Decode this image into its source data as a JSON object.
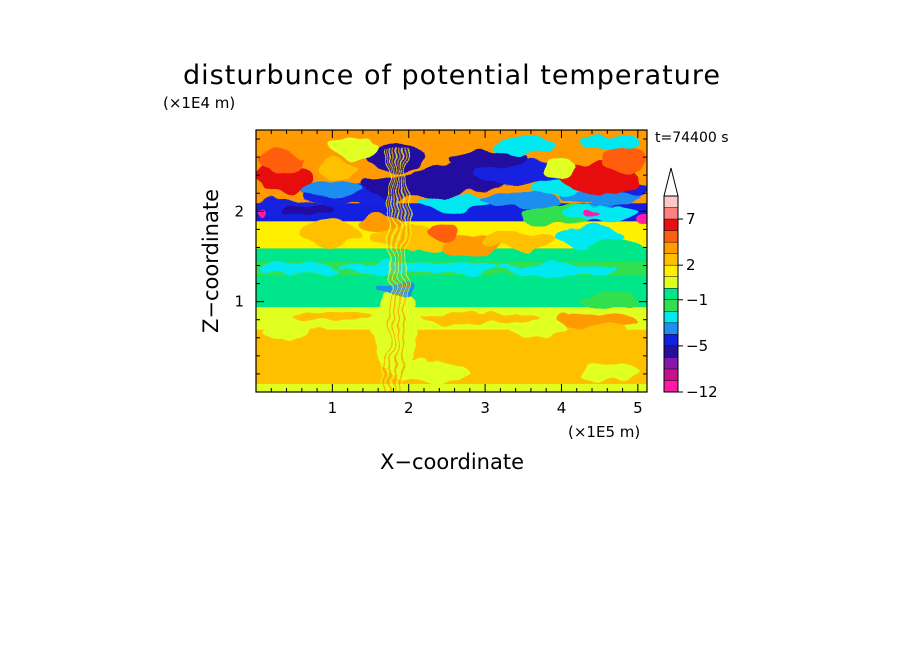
{
  "chart_data": {
    "type": "heatmap",
    "title": "disturbunce of potential temperature",
    "xlabel": "X−coordinate",
    "ylabel": "Z−coordinate",
    "x_unit": "(×1E5 m)",
    "y_unit": "(×1E4 m)",
    "time_label": "t=74400 s",
    "xlim": [
      0,
      5.12
    ],
    "ylim": [
      0,
      2.9
    ],
    "x_ticks": [
      1,
      2,
      3,
      4,
      5
    ],
    "x_tick_labels": [
      "1",
      "2",
      "3",
      "4",
      "5"
    ],
    "y_ticks": [
      1,
      2
    ],
    "y_tick_labels": [
      "1",
      "2"
    ],
    "colorbar": {
      "levels": [
        -12,
        -11,
        -9,
        -7,
        -5,
        -4,
        -3,
        -2,
        -1,
        0,
        1,
        2,
        3,
        4,
        5,
        7,
        9
      ],
      "colors": [
        "#ff1aa6",
        "#c8108c",
        "#8a16a8",
        "#2210a0",
        "#1420e0",
        "#1f8ef0",
        "#00e8f0",
        "#30e050",
        "#00e68a",
        "#e0ff20",
        "#fff000",
        "#ffc000",
        "#ff9a00",
        "#ff5e10",
        "#e81010",
        "#ff8080",
        "#ffc8c8"
      ],
      "tick_values": [
        7,
        2,
        -1,
        -5,
        -12
      ],
      "tick_labels": [
        "7",
        "2",
        "−1",
        "−5",
        "−12"
      ],
      "extend": "max"
    },
    "field_bands": [
      {
        "z_range": [
          0,
          0.1
        ],
        "value": 0.5,
        "feature": "yellow surface strip"
      },
      {
        "z_range": [
          0.1,
          0.7
        ],
        "value": 2.3,
        "feature": "orange layer with yellow patches"
      },
      {
        "z_range": [
          0.7,
          0.95
        ],
        "value": 0.8,
        "feature": "yellow layer"
      },
      {
        "z_range": [
          0.95,
          1.3
        ],
        "value": -0.6,
        "feature": "green layer"
      },
      {
        "z_range": [
          1.3,
          1.45
        ],
        "value": -1.5,
        "feature": "cyan band"
      },
      {
        "z_range": [
          1.45,
          1.6
        ],
        "value": -0.5,
        "feature": "green band"
      },
      {
        "z_range": [
          1.6,
          1.9
        ],
        "value": 1,
        "feature": "yellow with orange patches"
      },
      {
        "z_range": [
          1.9,
          2.1
        ],
        "value": -5,
        "feature": "blue wave band"
      },
      {
        "z_range": [
          2.1,
          2.9
        ],
        "value": 3.5,
        "feature": "orange/red upper layer"
      }
    ]
  }
}
